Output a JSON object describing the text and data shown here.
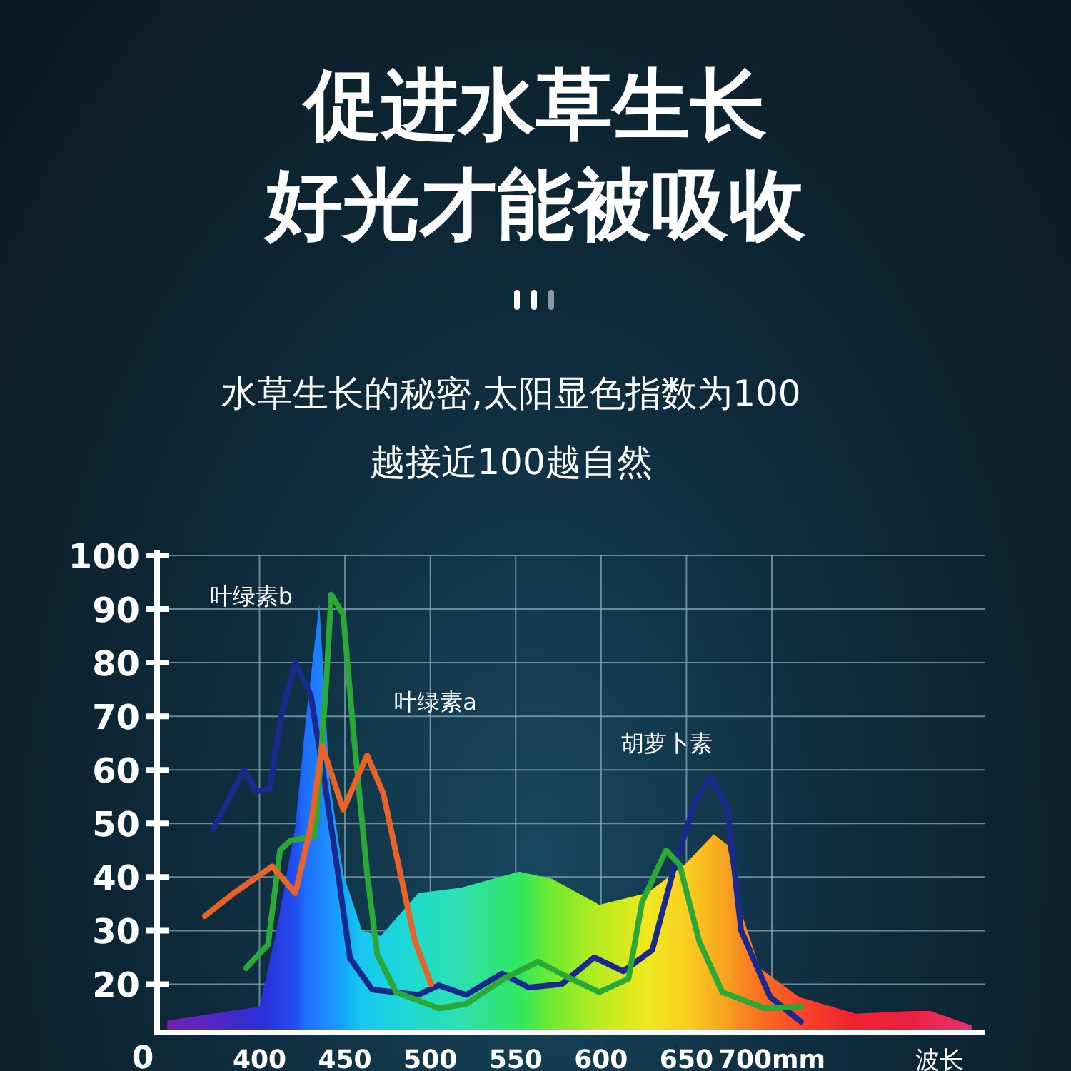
{
  "chart_data": {
    "type": "line",
    "title": "促进水草生长好光才能被吸收",
    "subtitle": "水草生长的秘密,太阳显色指数为100\n越接近100越自然",
    "xlabel": "波长",
    "annotations": [
      "叶绿素b",
      "叶绿素a",
      "胡萝卜素",
      "0"
    ],
    "xlim": [
      340,
      825
    ],
    "ylim": [
      11,
      100
    ],
    "xticks": [
      400,
      450,
      500,
      550,
      600,
      650,
      {
        "value": 700,
        "label": "700mm"
      }
    ],
    "yticks": [
      20,
      30,
      40,
      50,
      60,
      70,
      80,
      90,
      100
    ],
    "grid": true,
    "series": [
      {
        "type": "area",
        "x": [
          346,
          400,
          410,
          421,
          427,
          435,
          441,
          449,
          460,
          471,
          493,
          518,
          552,
          571,
          599,
          627,
          649,
          666,
          674,
          680,
          693,
          716,
          749,
          783,
          793,
          817
        ],
        "values": [
          13.2,
          15.8,
          30,
          49.4,
          69,
          91,
          58,
          40.6,
          30,
          29,
          37,
          38,
          41,
          39.7,
          34.8,
          37,
          42.3,
          48,
          46,
          35.4,
          23,
          17.6,
          14.5,
          15,
          15,
          12.3
        ],
        "colors": [
          "#7a1fb0",
          "#2b2fd6",
          "#2a3ae0",
          "#2050f0",
          "#1e6fff",
          "#1e80ff",
          "#1e90ff",
          "#10a8f8",
          "#19c8f0",
          "#19d0e8",
          "#20dcc8",
          "#2ee0b0",
          "#2ee860",
          "#70ea30",
          "#b8ec20",
          "#f0e820",
          "#f8d020",
          "#f8b020",
          "#f8a020",
          "#f89020",
          "#f87020",
          "#f84828",
          "#f02030",
          "#e82040",
          "#e82850",
          "#e83070"
        ]
      },
      {
        "color": "#1a2a8c",
        "x": [
          373,
          391,
          398,
          406,
          413,
          421,
          430,
          438,
          446,
          453,
          466,
          493,
          505,
          521,
          542,
          557.5,
          577,
          596,
          613,
          630,
          643,
          655,
          664,
          674,
          682,
          699,
          717
        ],
        "values": [
          49,
          60,
          56,
          56.5,
          70.6,
          80,
          74,
          58,
          40.6,
          24.8,
          19,
          18,
          19.8,
          18,
          22,
          19.4,
          20,
          25,
          22.4,
          26.4,
          42,
          54,
          58.7,
          53,
          30,
          17.6,
          13
        ]
      },
      {
        "color": "#2aa838",
        "x": [
          392,
          405,
          412,
          418,
          432.5,
          439,
          442,
          449,
          455,
          463,
          469,
          480,
          505,
          521,
          543,
          563,
          582.5,
          599,
          616,
          624,
          638,
          646,
          657.5,
          671,
          696,
          717
        ],
        "values": [
          23,
          27.4,
          45,
          46.8,
          47.6,
          76,
          92.7,
          89,
          67,
          40.6,
          25.5,
          18.5,
          15.5,
          16.3,
          21,
          24.2,
          21,
          18.5,
          21,
          35.3,
          45,
          42.3,
          28,
          18.5,
          15.5,
          15.8
        ]
      },
      {
        "color": "#e8632a",
        "x": [
          368,
          385,
          407.5,
          421,
          430,
          436.7,
          449,
          463,
          472.5,
          482.5,
          491,
          500.5
        ],
        "values": [
          32.7,
          37,
          42,
          37,
          49.4,
          64.5,
          52.6,
          62.7,
          55.6,
          40.6,
          28,
          20
        ]
      }
    ]
  }
}
